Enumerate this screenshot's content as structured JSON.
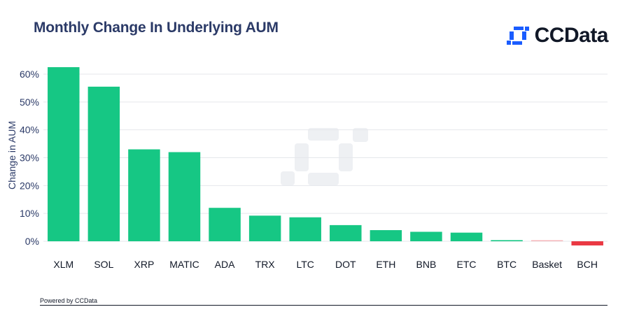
{
  "header": {
    "title": "Monthly Change In Underlying AUM"
  },
  "brand": {
    "name": "CCData",
    "icon": "ccdata-logo-icon",
    "color": "#1a5cff"
  },
  "footer": {
    "text": "Powered by CCData"
  },
  "colors": {
    "positive": "#16c784",
    "negative": "#ea3943",
    "grid": "#e5e7eb",
    "axis_text": "#2b3a67"
  },
  "chart_data": {
    "type": "bar",
    "categories": [
      "XLM",
      "SOL",
      "XRP",
      "MATIC",
      "ADA",
      "TRX",
      "LTC",
      "DOT",
      "ETH",
      "BNB",
      "ETC",
      "BTC",
      "Basket",
      "BCH"
    ],
    "values": [
      62.5,
      55.5,
      33,
      32,
      12,
      9.2,
      8.6,
      5.8,
      4,
      3.4,
      3.1,
      0.4,
      0.1,
      -1.5
    ],
    "ylabel": "Change in AUM",
    "xlabel": "",
    "ylim": [
      -3,
      63
    ],
    "yticks": [
      0,
      10,
      20,
      30,
      40,
      50,
      60
    ],
    "ytick_labels": [
      "0%",
      "10%",
      "20%",
      "30%",
      "40%",
      "50%",
      "60%"
    ],
    "grid": true,
    "legend": "none"
  }
}
